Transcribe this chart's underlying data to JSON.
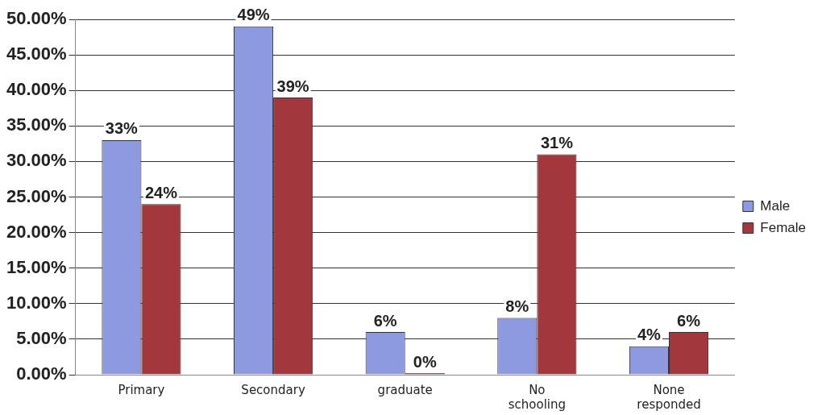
{
  "chart_data": {
    "type": "bar",
    "categories": [
      "Primary",
      "Secondary",
      "graduate",
      "No schooling",
      "None responded"
    ],
    "series": [
      {
        "name": "Male",
        "color": "#8e9ae0",
        "values": [
          33,
          49,
          6,
          8,
          4
        ],
        "value_labels": [
          "33%",
          "49%",
          "6%",
          "8%",
          "4%"
        ]
      },
      {
        "name": "Female",
        "color": "#a3373e",
        "values": [
          24,
          39,
          0,
          31,
          6
        ],
        "value_labels": [
          "24%",
          "39%",
          "0%",
          "31%",
          "6%"
        ]
      }
    ],
    "ylim": [
      0,
      50
    ],
    "yticks": [
      {
        "value": 0,
        "label": "0.00%"
      },
      {
        "value": 5,
        "label": "5.00%"
      },
      {
        "value": 10,
        "label": "10.00%"
      },
      {
        "value": 15,
        "label": "15.00%"
      },
      {
        "value": 20,
        "label": "20.00%"
      },
      {
        "value": 25,
        "label": "25.00%"
      },
      {
        "value": 30,
        "label": "30.00%"
      },
      {
        "value": 35,
        "label": "35.00%"
      },
      {
        "value": 40,
        "label": "40.00%"
      },
      {
        "value": 45,
        "label": "45.00%"
      },
      {
        "value": 50,
        "label": "50.00%"
      }
    ],
    "grid": "y",
    "legend": "right"
  }
}
